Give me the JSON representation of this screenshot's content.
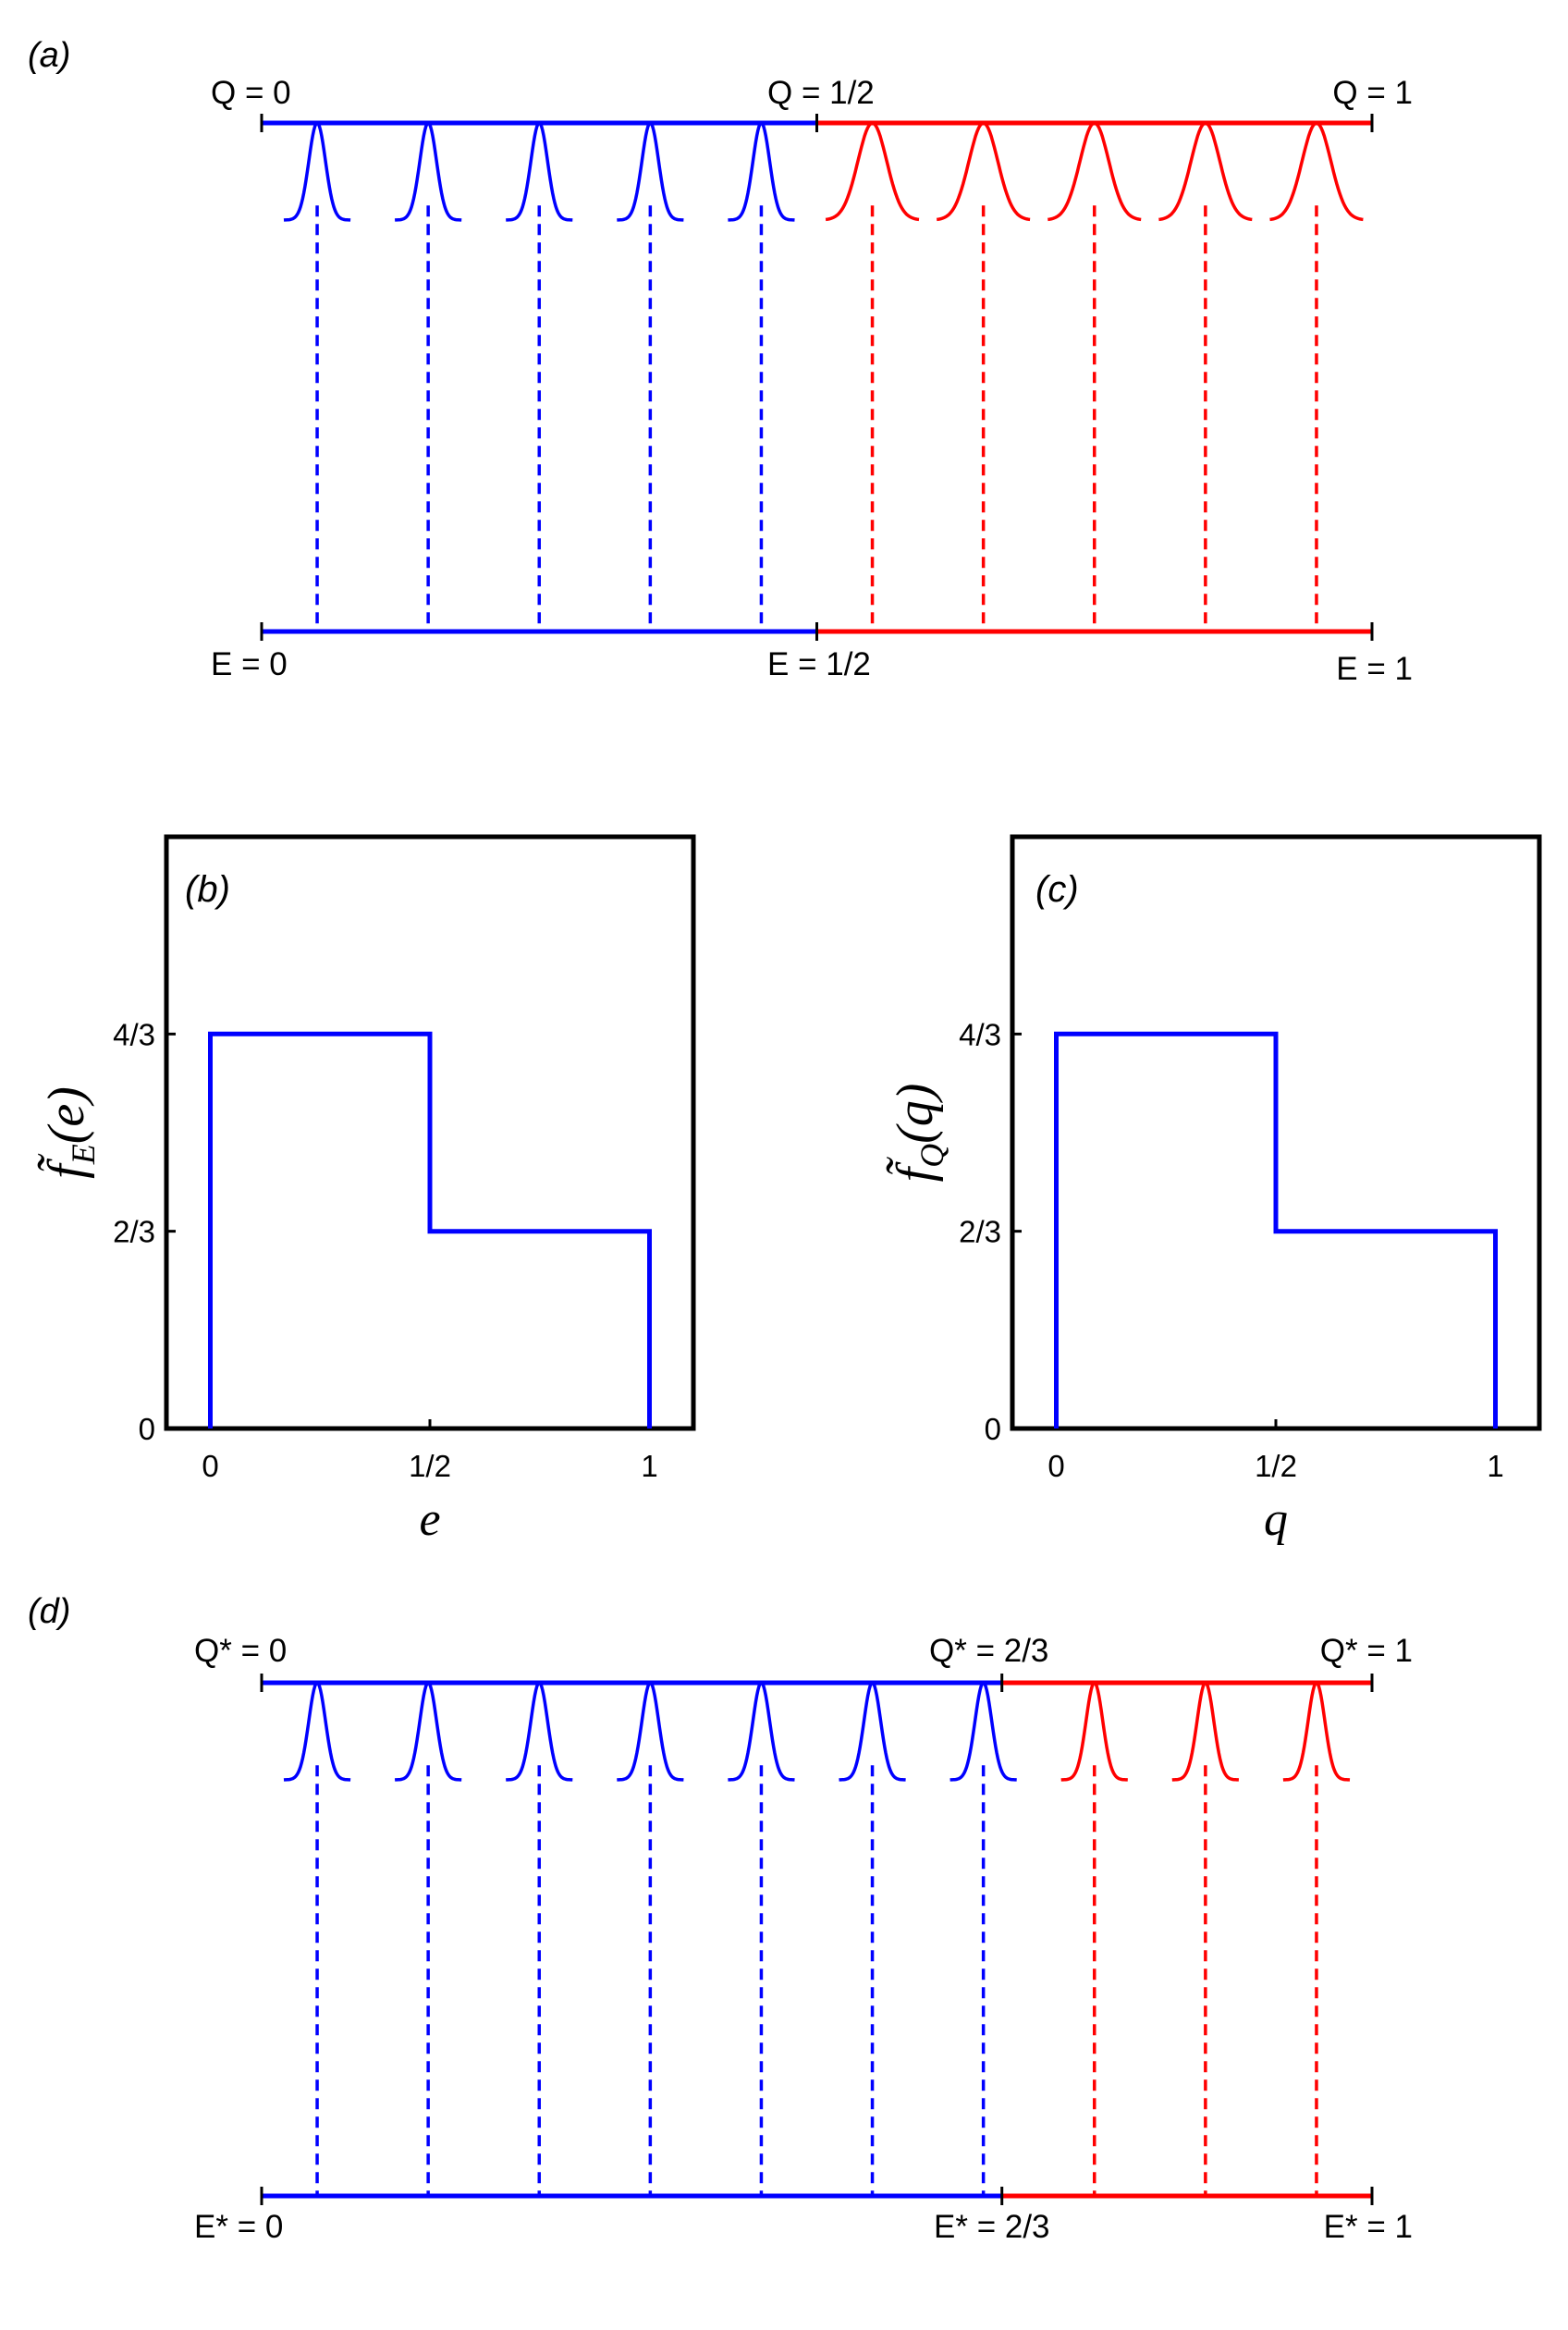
{
  "colors": {
    "blue": "#0000ff",
    "red": "#ff0000",
    "axis": "#000000"
  },
  "panel_a": {
    "tag": "(a)",
    "top_labels": [
      "Q = 0",
      "Q = 1/2",
      "Q = 1"
    ],
    "bottom_labels": [
      "E = 0",
      "E = 1/2",
      "E = 1"
    ],
    "split": 0.5,
    "blue_points": [
      0.05,
      0.15,
      0.25,
      0.35,
      0.45
    ],
    "red_points": [
      0.55,
      0.65,
      0.75,
      0.85,
      0.95
    ],
    "blue_width": 0.6,
    "red_width": 1.0
  },
  "panel_b": {
    "tag": "(b)",
    "ylabel_base": "f̃",
    "ylabel_sub": "E",
    "ylabel_arg": "(e)",
    "xlabel": "e",
    "xticks": [
      "0",
      "1/2",
      "1"
    ],
    "yticks": [
      "0",
      "2/3",
      "4/3"
    ]
  },
  "panel_c": {
    "tag": "(c)",
    "ylabel_base": "f̃",
    "ylabel_sub": "Q",
    "ylabel_arg": "(q)",
    "xlabel": "q",
    "xticks": [
      "0",
      "1/2",
      "1"
    ],
    "yticks": [
      "0",
      "2/3",
      "4/3"
    ]
  },
  "chart_data": [
    {
      "type": "line",
      "title": "(b)",
      "xlabel": "e",
      "ylabel": "f̃_E(e)",
      "x": [
        0,
        0,
        0.5,
        0.5,
        1,
        1
      ],
      "y": [
        0,
        1.3333,
        1.3333,
        0.6667,
        0.6667,
        0
      ],
      "xlim": [
        -0.1,
        1.1
      ],
      "ylim": [
        0,
        2
      ],
      "xticks": [
        0,
        0.5,
        1
      ],
      "yticks": [
        0,
        0.6667,
        1.3333
      ],
      "grid": false
    },
    {
      "type": "line",
      "title": "(c)",
      "xlabel": "q",
      "ylabel": "f̃_Q(q)",
      "x": [
        0,
        0,
        0.5,
        0.5,
        1,
        1
      ],
      "y": [
        0,
        1.3333,
        1.3333,
        0.6667,
        0.6667,
        0
      ],
      "xlim": [
        -0.1,
        1.1
      ],
      "ylim": [
        0,
        2
      ],
      "xticks": [
        0,
        0.5,
        1
      ],
      "yticks": [
        0,
        0.6667,
        1.3333
      ],
      "grid": false
    }
  ],
  "panel_d": {
    "tag": "(d)",
    "top_labels": [
      "Q* = 0",
      "Q* = 2/3",
      "Q* = 1"
    ],
    "bottom_labels": [
      "E* = 0",
      "E* = 2/3",
      "E* = 1"
    ],
    "split": 0.6667,
    "blue_points": [
      0.05,
      0.15,
      0.25,
      0.35,
      0.45,
      0.55,
      0.65
    ],
    "red_points": [
      0.75,
      0.85,
      0.95
    ],
    "blue_width": 0.6,
    "red_width": 0.6
  }
}
